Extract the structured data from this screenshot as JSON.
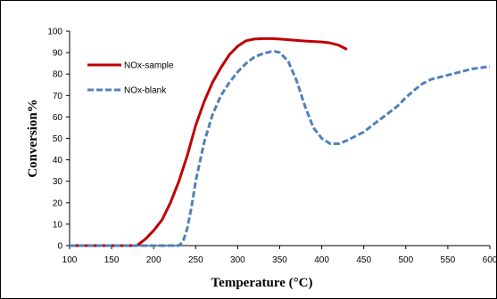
{
  "chart_data": {
    "type": "line",
    "title": "",
    "xlabel": "Temperature (°C)",
    "ylabel": "Conversion%",
    "xlim": [
      100,
      600
    ],
    "ylim": [
      0,
      100
    ],
    "x_ticks": [
      100,
      150,
      200,
      250,
      300,
      350,
      400,
      450,
      500,
      550,
      600
    ],
    "y_ticks": [
      0,
      10,
      20,
      30,
      40,
      50,
      60,
      70,
      80,
      90,
      100
    ],
    "grid": false,
    "legend_position": "top-left",
    "series": [
      {
        "name": "NOx-sample",
        "color": "#c00000",
        "style": "solid",
        "x": [
          100,
          180,
          190,
          200,
          210,
          220,
          230,
          240,
          250,
          260,
          270,
          280,
          290,
          300,
          310,
          320,
          330,
          340,
          350,
          360,
          370,
          380,
          390,
          400,
          410,
          420,
          430
        ],
        "y": [
          0,
          0,
          3,
          7,
          12,
          20,
          30,
          42,
          56,
          67,
          76,
          83,
          89,
          93,
          95.5,
          96.3,
          96.5,
          96.5,
          96.3,
          96,
          95.7,
          95.4,
          95.2,
          95,
          94.5,
          93.5,
          91.5
        ]
      },
      {
        "name": "NOx-blank",
        "color": "#4f81bd",
        "style": "dashed",
        "x": [
          100,
          230,
          235,
          240,
          245,
          250,
          260,
          270,
          280,
          290,
          300,
          310,
          320,
          330,
          340,
          345,
          350,
          360,
          370,
          380,
          390,
          400,
          410,
          420,
          430,
          440,
          450,
          460,
          470,
          480,
          490,
          500,
          510,
          520,
          530,
          540,
          550,
          560,
          570,
          580,
          590,
          600
        ],
        "y": [
          0,
          0,
          2,
          8,
          18,
          30,
          48,
          61,
          70,
          76,
          81,
          85,
          88,
          89.5,
          90.5,
          90.5,
          90,
          86,
          77,
          65,
          55,
          50,
          47.5,
          47.5,
          49,
          51,
          53,
          56,
          59,
          62,
          65,
          69,
          72.5,
          75.5,
          77.5,
          78.5,
          79.5,
          80.5,
          81.5,
          82.5,
          83,
          83.5
        ]
      }
    ]
  }
}
